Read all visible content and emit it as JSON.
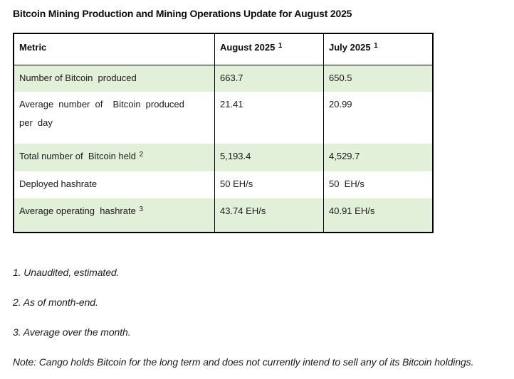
{
  "title": "Bitcoin Mining Production and Mining Operations Update for August 2025",
  "table": {
    "header": {
      "metric": "Metric",
      "august": "August 2025 ",
      "august_sup": "1",
      "july": "July 2025 ",
      "july_sup": "1"
    },
    "rows": [
      {
        "metric": "Number of Bitcoin  produced",
        "aug": "663.7",
        "jul": "650.5"
      },
      {
        "metric": "Average number of  Bitcoin produced\nper day",
        "aug": "21.41",
        "jul": "20.99"
      },
      {
        "metric": "Total number of  Bitcoin held ",
        "metric_sup": "2",
        "aug": "5,193.4",
        "jul": "4,529.7"
      },
      {
        "metric": "Deployed hashrate",
        "aug": "50 EH/s",
        "jul": "50  EH/s"
      },
      {
        "metric": "Average operating  hashrate ",
        "metric_sup": "3",
        "aug": "43.74 EH/s",
        "jul": "40.91 EH/s"
      }
    ]
  },
  "footnotes": [
    "1. Unaudited, estimated.",
    "2. As of month-end.",
    "3. Average over the month.",
    "Note: Cango holds Bitcoin for the long term and does not currently intend to sell any of its Bitcoin holdings."
  ],
  "colors": {
    "row_shading": "#e2efd9",
    "table_border": "#000000",
    "text": "#1b1b1b"
  }
}
